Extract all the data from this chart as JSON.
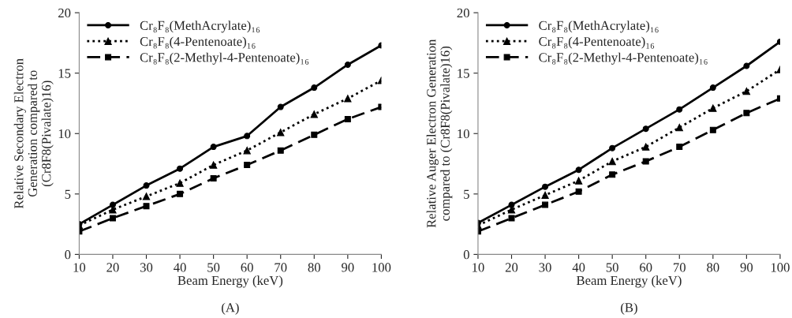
{
  "chart_data": [
    {
      "type": "line",
      "xlabel": "Beam Energy (keV)",
      "ylabel": "Relative Secondary Electron\nGeneration compared to\n(Cr8F8(Pivalate)16)",
      "annotations": [
        "(A)"
      ],
      "x": [
        10,
        20,
        30,
        40,
        50,
        60,
        70,
        80,
        90,
        100
      ],
      "xlim": [
        10,
        100
      ],
      "xticks": [
        10,
        20,
        30,
        40,
        50,
        60,
        70,
        80,
        90,
        100
      ],
      "ylim": [
        0,
        20
      ],
      "yticks": [
        0,
        5,
        10,
        15,
        20
      ],
      "legend": "top left",
      "grid": false,
      "series": [
        {
          "name": "Cr₈F₈(MethAcrylate)₁₆",
          "color": "#000000",
          "marker": "circle",
          "line_style": "solid",
          "values": [
            2.5,
            4.1,
            5.7,
            7.1,
            8.9,
            9.8,
            12.2,
            13.8,
            15.7,
            17.3
          ]
        },
        {
          "name": "Cr₈F₈(4-Pentenoate)₁₆",
          "color": "#000000",
          "marker": "triangle",
          "line_style": "dotted",
          "values": [
            2.4,
            3.7,
            4.8,
            5.9,
            7.4,
            8.6,
            10.1,
            11.6,
            12.9,
            14.4
          ]
        },
        {
          "name": "Cr₈F₈(2-Methyl-4-Pentenoate)₁₆",
          "color": "#000000",
          "marker": "square",
          "line_style": "dashed",
          "values": [
            1.9,
            3.0,
            4.0,
            5.0,
            6.3,
            7.4,
            8.6,
            9.9,
            11.2,
            12.2
          ]
        }
      ]
    },
    {
      "type": "line",
      "xlabel": "Beam Energy (keV)",
      "ylabel": "Relative Auger Electron Generation\ncompared to (Cr8F8(Pivalate)16)",
      "annotations": [
        "(B)"
      ],
      "x": [
        10,
        20,
        30,
        40,
        50,
        60,
        70,
        80,
        90,
        100
      ],
      "xlim": [
        10,
        100
      ],
      "xticks": [
        10,
        20,
        30,
        40,
        50,
        60,
        70,
        80,
        90,
        100
      ],
      "ylim": [
        0,
        20
      ],
      "yticks": [
        0,
        5,
        10,
        15,
        20
      ],
      "legend": "top left",
      "grid": false,
      "series": [
        {
          "name": "Cr₈F₈(MethAcrylate)₁₆",
          "color": "#000000",
          "marker": "circle",
          "line_style": "solid",
          "values": [
            2.6,
            4.1,
            5.6,
            7.0,
            8.8,
            10.4,
            12.0,
            13.8,
            15.6,
            17.6
          ]
        },
        {
          "name": "Cr₈F₈(4-Pentenoate)₁₆",
          "color": "#000000",
          "marker": "triangle",
          "line_style": "dotted",
          "values": [
            2.4,
            3.7,
            4.9,
            6.1,
            7.7,
            8.9,
            10.5,
            12.1,
            13.5,
            15.3
          ]
        },
        {
          "name": "Cr₈F₈(2-Methyl-4-Pentenoate)₁₆",
          "color": "#000000",
          "marker": "square",
          "line_style": "dashed",
          "values": [
            1.9,
            3.0,
            4.1,
            5.2,
            6.6,
            7.7,
            8.9,
            10.3,
            11.7,
            12.9
          ]
        }
      ]
    }
  ]
}
